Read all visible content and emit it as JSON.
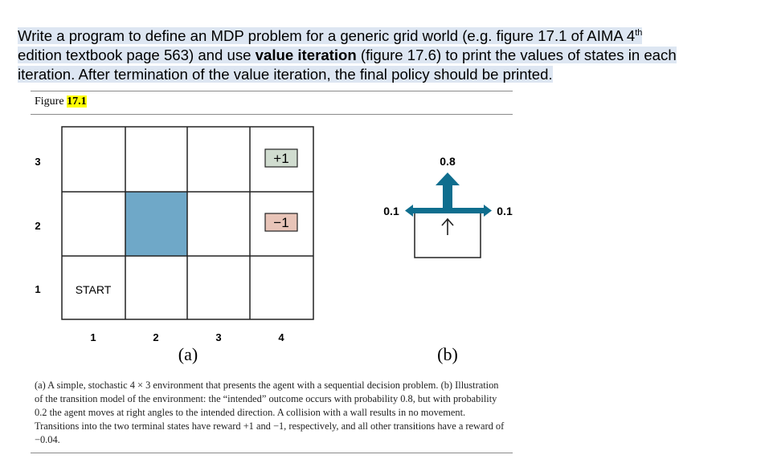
{
  "task": {
    "part1": "Write a program to define an MDP problem for a generic grid world (e.g. figure 17.1 of AIMA 4",
    "sup": "th",
    "part2": " edition textbook page 563) and use ",
    "bold": "value iteration",
    "part3": " (figure 17.6) to print the values of states in each iteration. After termination of the value iteration, the final policy should be printed."
  },
  "figure": {
    "label_prefix": "Figure ",
    "label_number": "17.1",
    "grid": {
      "row_labels": [
        "3",
        "2",
        "1"
      ],
      "col_labels": [
        "1",
        "2",
        "3",
        "4"
      ],
      "start_label": "START",
      "plus_label": "+1",
      "minus_label": "−1",
      "sub_label": "(a)",
      "wall_color": "#6fa8c8",
      "plus_color": "#d0dccf",
      "minus_color": "#e8c4b8"
    },
    "transition": {
      "prob_up": "0.8",
      "prob_left": "0.1",
      "prob_right": "0.1",
      "sub_label": "(b)",
      "arrow_color": "#0f6e8e"
    },
    "caption": "(a) A simple, stochastic 4 × 3 environment that presents the agent with a sequential decision problem. (b) Illustration of the transition model of the environment: the “intended” outcome occurs with probability 0.8, but with probability 0.2 the agent moves at right angles to the intended direction. A collision with a wall results in no movement. Transitions into the two terminal states have reward +1 and −1, respectively, and all other transitions have a reward of −0.04."
  }
}
